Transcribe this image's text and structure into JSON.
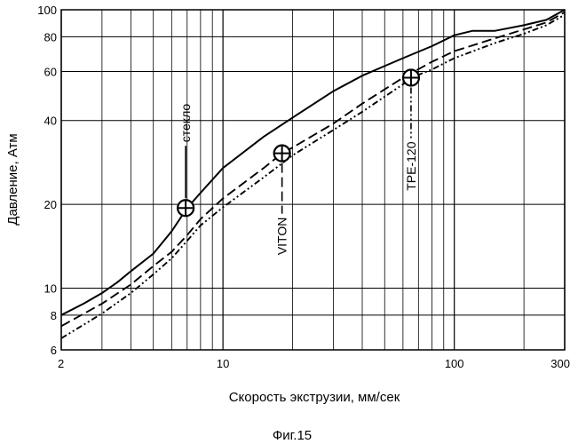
{
  "chart_data": {
    "type": "line",
    "xlabel": "Скорость экструзии, мм/сек",
    "ylabel": "Давление, Атм",
    "caption": "Фиг.15",
    "x_scale": "log",
    "y_scale": "log",
    "xlim": [
      2,
      300
    ],
    "ylim": [
      6,
      100
    ],
    "grid": true,
    "x_major_ticks": [
      {
        "value": 2,
        "label": "2"
      },
      {
        "value": 10,
        "label": "10"
      },
      {
        "value": 100,
        "label": "100"
      },
      {
        "value": 300,
        "label": "300"
      }
    ],
    "x_minor_grid": [
      3,
      4,
      5,
      6,
      7,
      8,
      9,
      20,
      30,
      40,
      50,
      60,
      70,
      80,
      90,
      200
    ],
    "y_ticks": [
      {
        "value": 6,
        "label": "6"
      },
      {
        "value": 8,
        "label": "8"
      },
      {
        "value": 10,
        "label": "10"
      },
      {
        "value": 20,
        "label": "20"
      },
      {
        "value": 40,
        "label": "40"
      },
      {
        "value": 60,
        "label": "60"
      },
      {
        "value": 80,
        "label": "80"
      },
      {
        "value": 100,
        "label": "100"
      }
    ],
    "series": [
      {
        "name": "стекло",
        "style": "solid",
        "x": [
          2,
          2.5,
          3,
          3.5,
          4,
          5,
          6,
          7,
          8,
          10,
          15,
          20,
          30,
          40,
          60,
          80,
          100,
          120,
          150,
          200,
          250,
          300
        ],
        "y": [
          8,
          8.8,
          9.6,
          10.5,
          11.5,
          13.3,
          16,
          19.4,
          22,
          27,
          35,
          41,
          51,
          58,
          67,
          74,
          81,
          84,
          84,
          88,
          92,
          100
        ],
        "marker": {
          "x": 6.9,
          "y": 19.4,
          "label": "стекло"
        }
      },
      {
        "name": "VITON",
        "style": "dash",
        "x": [
          2,
          3,
          4,
          5,
          6,
          7,
          8,
          10,
          15,
          18,
          20,
          30,
          40,
          60,
          80,
          100,
          150,
          200,
          250,
          300
        ],
        "y": [
          7.3,
          8.8,
          10.3,
          12,
          13.5,
          15.5,
          17.7,
          21,
          27,
          30.5,
          32,
          39,
          46,
          57,
          65,
          71,
          79,
          85,
          90,
          98
        ],
        "marker": {
          "x": 18,
          "y": 30.5,
          "label": "VITON"
        }
      },
      {
        "name": "TPE-120",
        "style": "dash-dot-dot",
        "x": [
          2,
          3,
          4,
          5,
          6,
          7,
          8,
          10,
          15,
          20,
          30,
          40,
          60,
          65,
          80,
          100,
          150,
          200,
          250,
          300
        ],
        "y": [
          6.6,
          8.1,
          9.6,
          11.2,
          12.8,
          14.8,
          16.8,
          19.5,
          25,
          30,
          37,
          43,
          54,
          57,
          61,
          67,
          76,
          82,
          88,
          96
        ],
        "marker": {
          "x": 65,
          "y": 57,
          "label": "TPE-120"
        }
      }
    ]
  }
}
